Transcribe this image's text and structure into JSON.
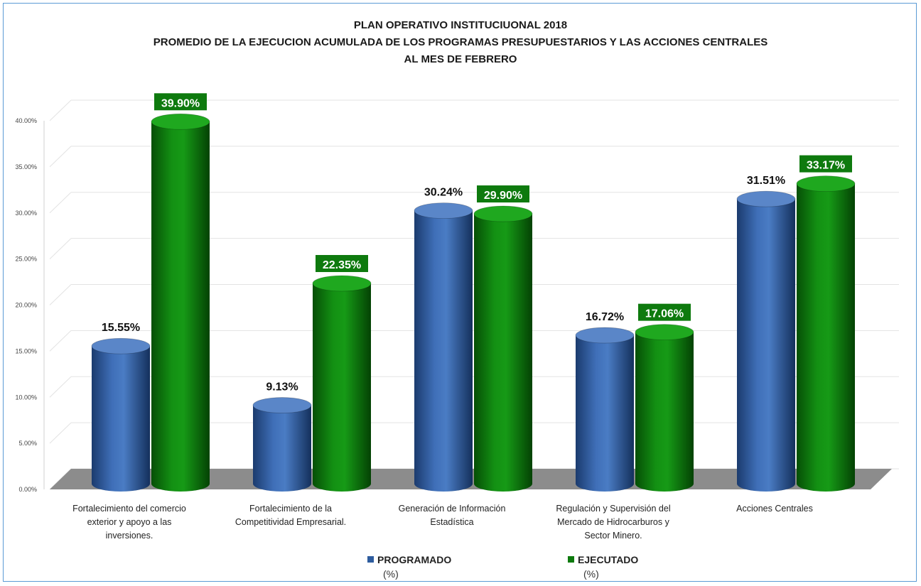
{
  "chart_data": {
    "type": "bar",
    "title_lines": [
      "PLAN OPERATIVO INSTITUCIUONAL 2018",
      "PROMEDIO DE LA EJECUCION ACUMULADA DE LOS  PROGRAMAS PRESUPUESTARIOS  Y LAS ACCIONES CENTRALES",
      "AL MES DE FEBRERO"
    ],
    "categories": [
      [
        "Fortalecimiento del comercio",
        "exterior y apoyo a las",
        "inversiones."
      ],
      [
        "Fortalecimiento de la",
        "Competitividad Empresarial."
      ],
      [
        "Generación de Información",
        "Estadística"
      ],
      [
        "Regulación y Supervisión del",
        "Mercado de Hidrocarburos y",
        "Sector Minero."
      ],
      [
        "Acciones Centrales"
      ]
    ],
    "series": [
      {
        "name": "PROGRAMADO",
        "name_sub": "(%)",
        "values": [
          15.55,
          9.13,
          30.24,
          16.72,
          31.51
        ],
        "labels": [
          "15.55%",
          "9.13%",
          "30.24%",
          "16.72%",
          "31.51%"
        ],
        "color": "#2e5c9e"
      },
      {
        "name": "EJECUTADO",
        "name_sub": "(%)",
        "values": [
          39.9,
          22.35,
          29.9,
          17.06,
          33.17
        ],
        "labels": [
          "39.90%",
          "22.35%",
          "29.90%",
          "17.06%",
          "33.17%"
        ],
        "color": "#0e7a0e"
      }
    ],
    "y_ticks": [
      "0.00%",
      "5.00%",
      "10.00%",
      "15.00%",
      "20.00%",
      "25.00%",
      "30.00%",
      "35.00%",
      "40.00%"
    ],
    "ylim": [
      0,
      40
    ],
    "grid": true,
    "legend_position": "bottom",
    "floor_color": "#8c8c8c"
  }
}
